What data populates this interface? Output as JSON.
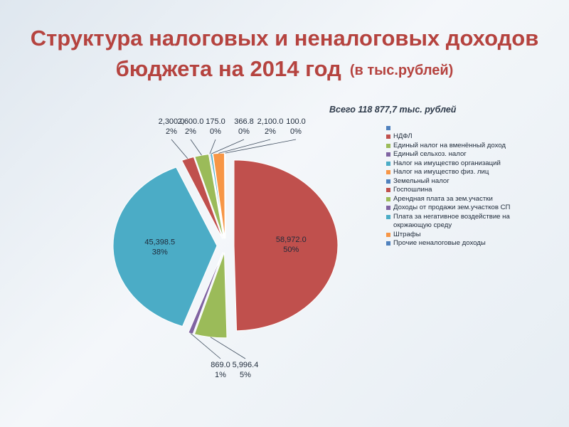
{
  "title": {
    "line1": "Структура налоговых и неналоговых доходов",
    "line2": "бюджета на 2014 год",
    "subtitle": "(в тыс.рублей)"
  },
  "total_label": "Всего  118 877,7 тыс. рублей",
  "colors": {
    "title": "#b5433f",
    "ndfl": "#c0504d",
    "envd": "#9bbb59",
    "eshn": "#8064a2",
    "property_org": "#4bacc6",
    "property_phys": "#f79646",
    "land": "#4f81bd"
  },
  "chart_data": {
    "type": "pie",
    "title": "Структура налоговых и неналоговых доходов бюджета на 2014 год",
    "legend_position": "right",
    "slices": [
      {
        "category": "",
        "value": 0,
        "percent": "",
        "value_label": "",
        "color": "#4f81bd"
      },
      {
        "category": "НДФЛ",
        "value": 58972.0,
        "percent": "50%",
        "value_label": "58,972.0",
        "color": "#c0504d"
      },
      {
        "category": "Единый налог на вменённый доход",
        "value": 5996.4,
        "percent": "5%",
        "value_label": "5,996.4",
        "color": "#9bbb59"
      },
      {
        "category": "Единый сельхоз. налог",
        "value": 869.0,
        "percent": "1%",
        "value_label": "869.0",
        "color": "#8064a2"
      },
      {
        "category": "Налог на имущество организаций",
        "value": 45398.5,
        "percent": "38%",
        "value_label": "45,398.5",
        "color": "#4bacc6"
      },
      {
        "category": "Налог на имущество физ. лиц",
        "value": 0,
        "percent": "",
        "value_label": "",
        "color": "#f79646"
      },
      {
        "category": "Земельный налог",
        "value": 0,
        "percent": "",
        "value_label": "",
        "color": "#4f81bd"
      },
      {
        "category": "Госпошлина",
        "value": 2300.0,
        "percent": "2%",
        "value_label": "2,300.0",
        "color": "#c0504d"
      },
      {
        "category": "Арендная плата за зем.участки",
        "value": 2600.0,
        "percent": "2%",
        "value_label": "2,600.0",
        "color": "#9bbb59"
      },
      {
        "category": "Доходы от продажи зем.участков СП",
        "value": 175.0,
        "percent": "0%",
        "value_label": "175.0",
        "color": "#8064a2"
      },
      {
        "category": "Плата за негативное воздействие на окржающую среду",
        "value": 366.8,
        "percent": "0%",
        "value_label": "366.8",
        "color": "#4bacc6"
      },
      {
        "category": "Штрафы",
        "value": 2100.0,
        "percent": "2%",
        "value_label": "2,100.0",
        "color": "#f79646"
      },
      {
        "category": "Прочие неналоговые доходы",
        "value": 100.0,
        "percent": "0%",
        "value_label": "100.0",
        "color": "#4f81bd"
      }
    ]
  }
}
